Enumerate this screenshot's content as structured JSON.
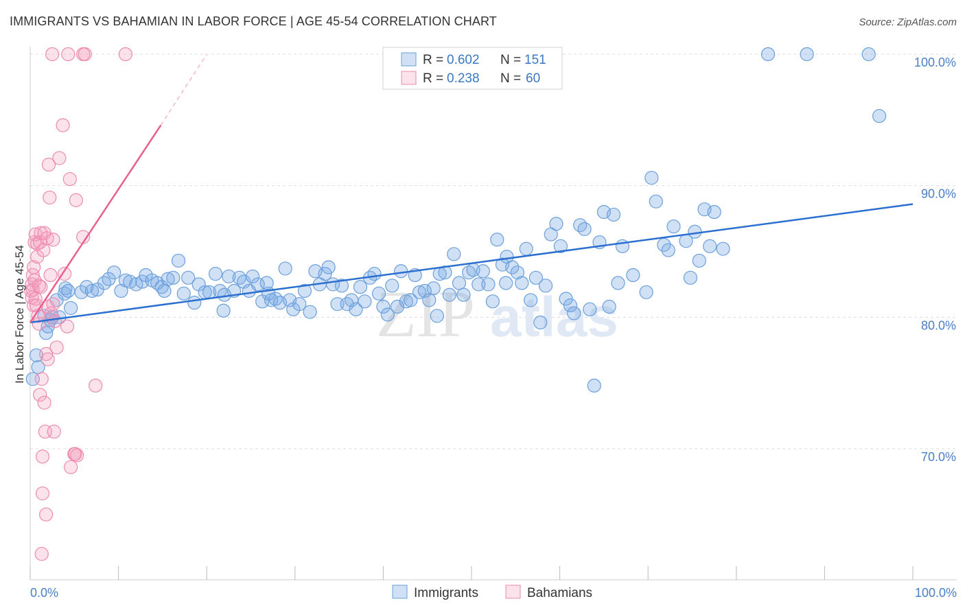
{
  "header": {
    "title": "IMMIGRANTS VS BAHAMIAN IN LABOR FORCE | AGE 45-54 CORRELATION CHART",
    "source": "Source: ZipAtlas.com"
  },
  "watermark": {
    "zip": "ZIP",
    "atlas": "atlas"
  },
  "colors": {
    "immigrants_fill": "rgba(120,170,230,0.35)",
    "immigrants_stroke": "#6a9fdc",
    "immigrants_line": "#2b6fd0",
    "bahamians_fill": "rgba(245,160,190,0.30)",
    "bahamians_stroke": "#ee8aaf",
    "bahamians_line": "#e8608f",
    "tick_text": "#4a7fc8",
    "grid": "#dddddd"
  },
  "legend": {
    "rows": [
      {
        "r_label": "R =",
        "r_value": "0.602",
        "n_label": "N =",
        "n_value": "151"
      },
      {
        "r_label": "R =",
        "r_value": "0.238",
        "n_label": "N =",
        "n_value": "60"
      }
    ]
  },
  "bottom_legend": {
    "items": [
      "Immigrants",
      "Bahamians"
    ]
  },
  "chart_data": {
    "type": "scatter",
    "title": "IMMIGRANTS VS BAHAMIAN IN LABOR FORCE | AGE 45-54 CORRELATION CHART",
    "xlabel": "",
    "ylabel": "In Labor Force | Age 45-54",
    "xlim": [
      0,
      100
    ],
    "ylim": [
      60,
      100.5
    ],
    "x_tick_labels": [
      "0.0%",
      "100.0%"
    ],
    "y_ticks": [
      70,
      80,
      90,
      100
    ],
    "y_tick_labels": [
      "70.0%",
      "80.0%",
      "90.0%",
      "100.0%"
    ],
    "grid": true,
    "legend_position": "top-center",
    "series": [
      {
        "name": "Immigrants",
        "r": 0.602,
        "n": 151,
        "trend": {
          "x": [
            0,
            100
          ],
          "y": [
            79.6,
            88.6
          ]
        },
        "points": [
          [
            0.3,
            75.3
          ],
          [
            0.7,
            77.1
          ],
          [
            0.9,
            76.2
          ],
          [
            1.6,
            80.1
          ],
          [
            1.8,
            78.8
          ],
          [
            2.0,
            79.3
          ],
          [
            2.3,
            79.8
          ],
          [
            2.5,
            80.0
          ],
          [
            3.3,
            80.0
          ],
          [
            3.0,
            81.3
          ],
          [
            3.9,
            81.8
          ],
          [
            4.0,
            82.2
          ],
          [
            4.3,
            82.0
          ],
          [
            4.6,
            80.7
          ],
          [
            5.8,
            81.9
          ],
          [
            6.4,
            82.3
          ],
          [
            7.0,
            82.0
          ],
          [
            7.6,
            82.1
          ],
          [
            8.4,
            82.6
          ],
          [
            8.9,
            82.9
          ],
          [
            9.5,
            83.4
          ],
          [
            10.3,
            82.0
          ],
          [
            10.8,
            82.8
          ],
          [
            11.3,
            82.7
          ],
          [
            12.0,
            82.5
          ],
          [
            12.7,
            82.7
          ],
          [
            13.1,
            83.2
          ],
          [
            13.8,
            82.8
          ],
          [
            14.4,
            82.6
          ],
          [
            14.9,
            82.3
          ],
          [
            15.2,
            82.0
          ],
          [
            15.6,
            82.9
          ],
          [
            16.2,
            83.0
          ],
          [
            16.8,
            84.3
          ],
          [
            17.4,
            81.8
          ],
          [
            17.9,
            83.0
          ],
          [
            18.6,
            81.1
          ],
          [
            19.1,
            82.5
          ],
          [
            19.8,
            81.9
          ],
          [
            20.3,
            81.9
          ],
          [
            21.0,
            83.3
          ],
          [
            21.5,
            82.0
          ],
          [
            22.0,
            81.7
          ],
          [
            22.5,
            83.1
          ],
          [
            23.1,
            82.0
          ],
          [
            23.7,
            83.0
          ],
          [
            24.2,
            82.7
          ],
          [
            24.8,
            82.0
          ],
          [
            25.2,
            83.1
          ],
          [
            25.8,
            82.5
          ],
          [
            26.3,
            81.2
          ],
          [
            26.8,
            82.6
          ],
          [
            27.3,
            81.3
          ],
          [
            27.8,
            81.4
          ],
          [
            28.3,
            81.1
          ],
          [
            28.9,
            83.7
          ],
          [
            29.4,
            81.3
          ],
          [
            29.8,
            80.6
          ],
          [
            30.5,
            81.0
          ],
          [
            31.1,
            82.0
          ],
          [
            31.7,
            80.4
          ],
          [
            32.3,
            83.5
          ],
          [
            32.8,
            82.5
          ],
          [
            33.4,
            83.3
          ],
          [
            33.8,
            83.8
          ],
          [
            34.3,
            82.5
          ],
          [
            34.8,
            81.0
          ],
          [
            35.3,
            82.4
          ],
          [
            35.9,
            81.0
          ],
          [
            36.4,
            81.3
          ],
          [
            36.9,
            80.6
          ],
          [
            37.4,
            82.3
          ],
          [
            37.9,
            81.2
          ],
          [
            38.5,
            83.0
          ],
          [
            39.0,
            83.3
          ],
          [
            39.5,
            81.8
          ],
          [
            40.0,
            80.8
          ],
          [
            40.5,
            80.2
          ],
          [
            41.0,
            82.4
          ],
          [
            41.6,
            80.8
          ],
          [
            42.0,
            83.5
          ],
          [
            42.6,
            81.2
          ],
          [
            43.1,
            81.3
          ],
          [
            43.6,
            83.2
          ],
          [
            44.1,
            81.9
          ],
          [
            44.7,
            82.0
          ],
          [
            45.2,
            81.3
          ],
          [
            45.7,
            82.2
          ],
          [
            46.4,
            83.3
          ],
          [
            47.0,
            83.4
          ],
          [
            47.5,
            81.7
          ],
          [
            48.0,
            84.8
          ],
          [
            48.6,
            82.6
          ],
          [
            49.1,
            81.7
          ],
          [
            49.7,
            83.4
          ],
          [
            50.2,
            83.6
          ],
          [
            50.8,
            82.5
          ],
          [
            51.3,
            83.5
          ],
          [
            51.9,
            82.5
          ],
          [
            52.4,
            81.2
          ],
          [
            52.9,
            85.9
          ],
          [
            53.5,
            84.0
          ],
          [
            54.0,
            84.6
          ],
          [
            54.6,
            83.8
          ],
          [
            55.2,
            83.4
          ],
          [
            55.7,
            82.6
          ],
          [
            56.2,
            85.2
          ],
          [
            56.7,
            81.3
          ],
          [
            57.3,
            83.0
          ],
          [
            57.8,
            79.6
          ],
          [
            58.4,
            82.4
          ],
          [
            59.0,
            86.3
          ],
          [
            59.6,
            87.1
          ],
          [
            60.1,
            85.4
          ],
          [
            60.7,
            81.4
          ],
          [
            61.2,
            80.9
          ],
          [
            61.6,
            80.3
          ],
          [
            62.3,
            87.0
          ],
          [
            62.8,
            86.7
          ],
          [
            63.4,
            80.6
          ],
          [
            63.9,
            74.8
          ],
          [
            64.5,
            85.7
          ],
          [
            65.0,
            88.0
          ],
          [
            65.6,
            80.8
          ],
          [
            66.1,
            87.8
          ],
          [
            66.6,
            82.6
          ],
          [
            67.1,
            85.4
          ],
          [
            68.3,
            83.2
          ],
          [
            69.8,
            81.9
          ],
          [
            70.4,
            90.6
          ],
          [
            70.9,
            88.8
          ],
          [
            71.8,
            85.5
          ],
          [
            72.3,
            85.1
          ],
          [
            72.9,
            86.9
          ],
          [
            74.3,
            85.8
          ],
          [
            74.8,
            83.0
          ],
          [
            75.3,
            86.5
          ],
          [
            75.8,
            84.3
          ],
          [
            76.4,
            88.2
          ],
          [
            77.0,
            85.4
          ],
          [
            77.5,
            88.0
          ],
          [
            78.5,
            85.2
          ],
          [
            83.6,
            100.0
          ],
          [
            88.0,
            100.0
          ],
          [
            95.0,
            100.0
          ],
          [
            96.2,
            95.3
          ],
          [
            21.9,
            80.5
          ],
          [
            46.1,
            80.1
          ],
          [
            27.0,
            81.8
          ],
          [
            53.9,
            82.6
          ]
        ]
      },
      {
        "name": "Bahamians",
        "r": 0.238,
        "n": 60,
        "trend": {
          "x": [
            0,
            14.8
          ],
          "y": [
            79.6,
            94.6
          ],
          "extension": {
            "x": [
              14.8,
              20.0
            ],
            "y": [
              94.6,
              100.0
            ]
          }
        },
        "points": [
          [
            0.1,
            82.0
          ],
          [
            0.2,
            82.5
          ],
          [
            0.2,
            81.5
          ],
          [
            0.3,
            83.2
          ],
          [
            0.3,
            82.1
          ],
          [
            0.4,
            80.9
          ],
          [
            0.4,
            83.8
          ],
          [
            0.5,
            85.7
          ],
          [
            0.5,
            82.8
          ],
          [
            0.6,
            81.4
          ],
          [
            0.6,
            86.3
          ],
          [
            0.7,
            80.9
          ],
          [
            0.8,
            84.6
          ],
          [
            0.8,
            85.6
          ],
          [
            0.9,
            80.1
          ],
          [
            1.0,
            82.4
          ],
          [
            1.0,
            79.5
          ],
          [
            1.1,
            74.1
          ],
          [
            1.1,
            85.7
          ],
          [
            1.2,
            86.4
          ],
          [
            1.2,
            82.3
          ],
          [
            1.3,
            75.3
          ],
          [
            1.3,
            62.0
          ],
          [
            1.4,
            66.6
          ],
          [
            1.4,
            69.4
          ],
          [
            1.5,
            85.1
          ],
          [
            1.6,
            73.5
          ],
          [
            1.6,
            86.4
          ],
          [
            1.7,
            71.3
          ],
          [
            1.8,
            65.0
          ],
          [
            1.8,
            77.2
          ],
          [
            1.9,
            86.0
          ],
          [
            2.0,
            76.8
          ],
          [
            2.0,
            80.8
          ],
          [
            2.1,
            91.6
          ],
          [
            2.2,
            89.1
          ],
          [
            2.3,
            83.2
          ],
          [
            2.4,
            80.3
          ],
          [
            2.6,
            81.0
          ],
          [
            2.7,
            71.3
          ],
          [
            2.8,
            79.7
          ],
          [
            3.0,
            77.7
          ],
          [
            3.3,
            92.1
          ],
          [
            3.7,
            94.6
          ],
          [
            3.9,
            83.3
          ],
          [
            4.2,
            79.3
          ],
          [
            4.5,
            90.5
          ],
          [
            4.6,
            68.6
          ],
          [
            5.0,
            69.6
          ],
          [
            5.1,
            69.6
          ],
          [
            5.2,
            88.9
          ],
          [
            5.3,
            69.5
          ],
          [
            6.0,
            86.1
          ],
          [
            7.4,
            74.8
          ],
          [
            2.5,
            100.0
          ],
          [
            4.3,
            100.0
          ],
          [
            6.0,
            100.0
          ],
          [
            6.2,
            100.0
          ],
          [
            10.8,
            100.0
          ],
          [
            2.6,
            85.9
          ]
        ]
      }
    ]
  }
}
